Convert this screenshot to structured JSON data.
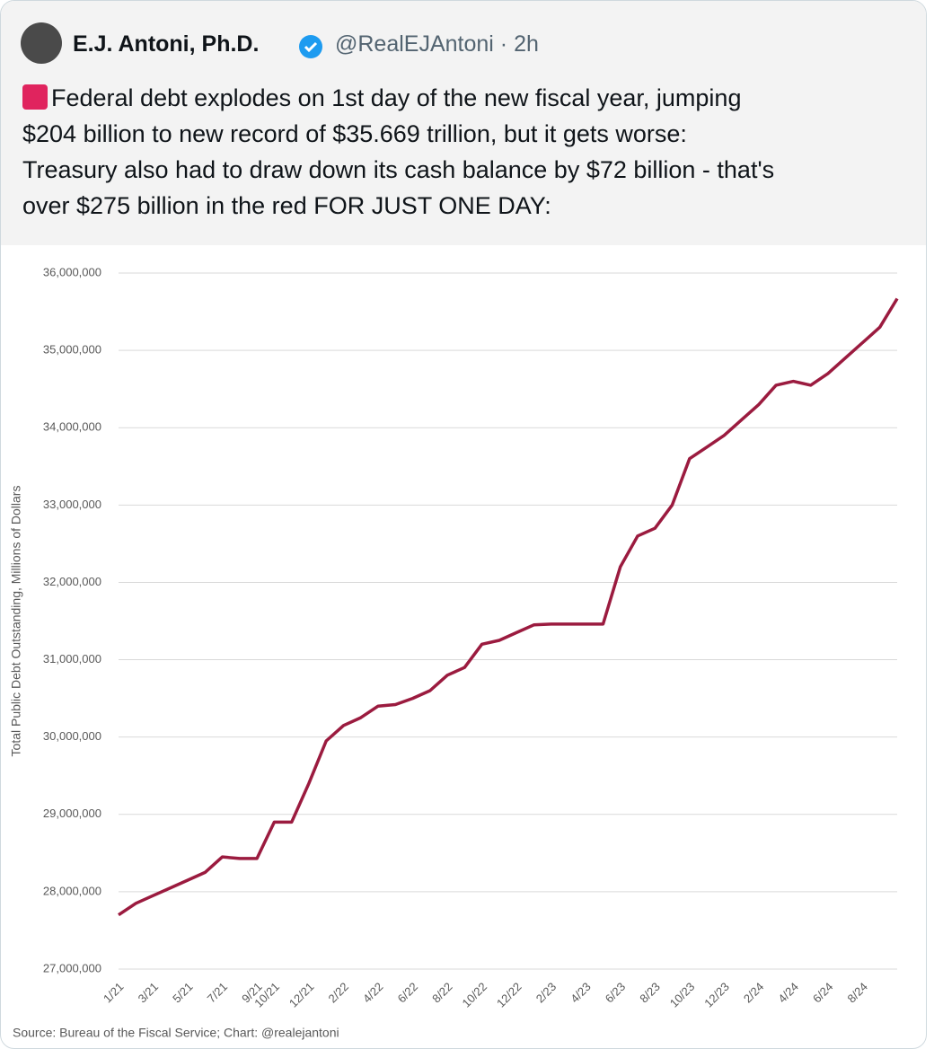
{
  "tweet": {
    "name": "E.J. Antoni, Ph.D.",
    "handle": "@RealEJAntoni",
    "time": "2h",
    "text_lines": [
      "Federal debt explodes on 1st day of the new fiscal year, jumping",
      "$204 billion to new record of $35.669 trillion, but it gets worse:",
      "Treasury also had to draw down its cash balance by $72 billion - that's",
      "over $275 billion in the red FOR JUST ONE DAY:"
    ]
  },
  "chart_data": {
    "type": "line",
    "ylabel": "Total Public Debt Outstanding, Millions of Dollars",
    "source": "Source: Bureau of the Fiscal Service; Chart: @realejantoni",
    "color": "#9b1b3f",
    "grid": true,
    "categories": [
      "1/21",
      null,
      "3/21",
      null,
      "5/21",
      null,
      "7/21",
      null,
      "9/21",
      "10/21",
      null,
      "12/21",
      null,
      "2/22",
      null,
      "4/22",
      null,
      "6/22",
      null,
      "8/22",
      null,
      "10/22",
      null,
      "12/22",
      null,
      "2/23",
      null,
      "4/23",
      null,
      "6/23",
      null,
      "8/23",
      null,
      "10/23",
      null,
      "12/23",
      null,
      "2/24",
      null,
      "4/24",
      null,
      "6/24",
      null,
      "8/24",
      null,
      null
    ],
    "values": [
      27700000,
      27850000,
      27950000,
      28050000,
      28150000,
      28250000,
      28450000,
      28430000,
      28430000,
      28900000,
      28900000,
      29400000,
      29950000,
      30150000,
      30250000,
      30400000,
      30420000,
      30500000,
      30600000,
      30800000,
      30900000,
      31200000,
      31250000,
      31350000,
      31450000,
      31460000,
      31460000,
      31460000,
      31460000,
      32200000,
      32600000,
      32700000,
      33000000,
      33600000,
      33750000,
      33900000,
      34100000,
      34300000,
      34550000,
      34600000,
      34550000,
      34700000,
      34900000,
      35100000,
      35300000,
      35669000
    ],
    "ylim": [
      27000000,
      36000000
    ],
    "yticks": [
      {
        "value": 27000000,
        "label": "27,000,000"
      },
      {
        "value": 28000000,
        "label": "28,000,000"
      },
      {
        "value": 29000000,
        "label": "29,000,000"
      },
      {
        "value": 30000000,
        "label": "30,000,000"
      },
      {
        "value": 31000000,
        "label": "31,000,000"
      },
      {
        "value": 32000000,
        "label": "32,000,000"
      },
      {
        "value": 33000000,
        "label": "33,000,000"
      },
      {
        "value": 34000000,
        "label": "34,000,000"
      },
      {
        "value": 35000000,
        "label": "35,000,000"
      },
      {
        "value": 36000000,
        "label": "36,000,000"
      }
    ]
  }
}
